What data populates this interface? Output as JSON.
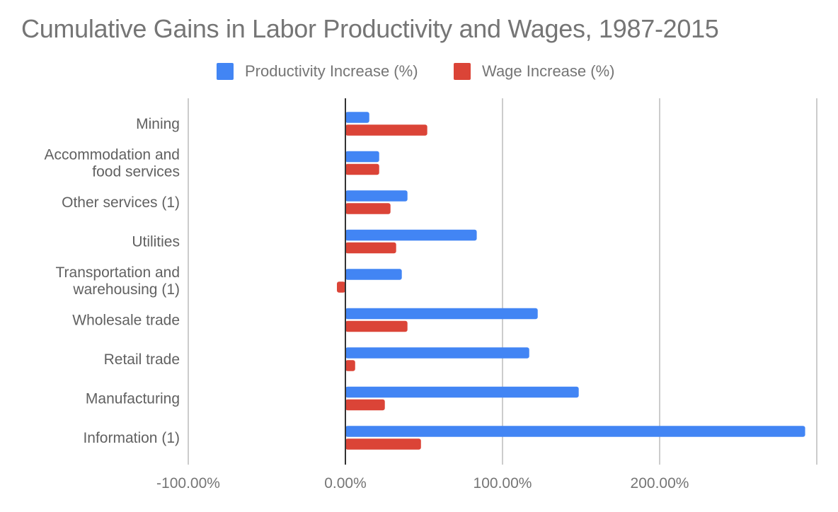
{
  "chart_data": {
    "type": "bar",
    "orientation": "horizontal",
    "title": "Cumulative Gains in Labor Productivity and Wages, 1987-2015",
    "xlabel": "",
    "ylabel": "",
    "xlim": [
      -100,
      300
    ],
    "xticks": [
      -100,
      0,
      100,
      200,
      300
    ],
    "xtick_labels": [
      "-100.00%",
      "0.00%",
      "100.00%",
      "200.00%",
      ""
    ],
    "grid": true,
    "legend_position": "top",
    "categories": [
      [
        "Mining"
      ],
      [
        "Accommodation and",
        "food services"
      ],
      [
        "Other services (1)"
      ],
      [
        "Utilities"
      ],
      [
        "Transportation and",
        "warehousing (1)"
      ],
      [
        "Wholesale trade"
      ],
      [
        "Retail trade"
      ],
      [
        "Manufacturing"
      ],
      [
        "Information (1)"
      ]
    ],
    "series": [
      {
        "name": "Productivity Increase (%)",
        "color": "#4285F4",
        "values": [
          15.2,
          21.5,
          39.5,
          83.6,
          35.9,
          122.4,
          117.0,
          148.5,
          292.6
        ]
      },
      {
        "name": "Wage Increase (%)",
        "color": "#DB4437",
        "values": [
          52.1,
          21.5,
          28.7,
          32.3,
          -5.4,
          39.5,
          6.2,
          25.1,
          48.1
        ]
      }
    ]
  }
}
